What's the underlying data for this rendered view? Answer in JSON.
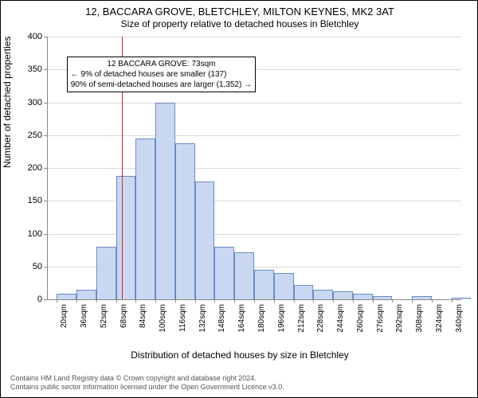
{
  "title_line1": "12, BACCARA GROVE, BLETCHLEY, MILTON KEYNES, MK2 3AT",
  "title_line2": "Size of property relative to detached houses in Bletchley",
  "y_axis_title": "Number of detached properties",
  "x_axis_title": "Distribution of detached houses by size in Bletchley",
  "chart": {
    "type": "histogram",
    "x_min": 12,
    "x_max": 348,
    "y_min": 0,
    "y_max": 400,
    "y_ticks": [
      0,
      50,
      100,
      150,
      200,
      250,
      300,
      350,
      400
    ],
    "x_tick_start": 20,
    "x_tick_step": 16,
    "x_tick_count": 21,
    "x_tick_suffix": "sqm",
    "bin_width": 16,
    "bins": [
      {
        "start": 20,
        "count": 8
      },
      {
        "start": 36,
        "count": 15
      },
      {
        "start": 52,
        "count": 80
      },
      {
        "start": 68,
        "count": 188
      },
      {
        "start": 84,
        "count": 245
      },
      {
        "start": 100,
        "count": 300
      },
      {
        "start": 116,
        "count": 238
      },
      {
        "start": 132,
        "count": 180
      },
      {
        "start": 148,
        "count": 80
      },
      {
        "start": 164,
        "count": 72
      },
      {
        "start": 180,
        "count": 45
      },
      {
        "start": 196,
        "count": 40
      },
      {
        "start": 212,
        "count": 22
      },
      {
        "start": 228,
        "count": 15
      },
      {
        "start": 244,
        "count": 12
      },
      {
        "start": 260,
        "count": 8
      },
      {
        "start": 276,
        "count": 5
      },
      {
        "start": 292,
        "count": 0
      },
      {
        "start": 308,
        "count": 5
      },
      {
        "start": 324,
        "count": 0
      },
      {
        "start": 340,
        "count": 3
      }
    ],
    "bar_fill": "#c9d8f0",
    "bar_stroke": "#6b8bc4",
    "grid_color": "#d9d9d9",
    "axis_color": "#888888",
    "background": "#ffffff",
    "marker": {
      "value": 73,
      "color": "#d62728"
    },
    "annotation": {
      "line1": "12 BACCARA GROVE: 73sqm",
      "line2": "← 9% of detached houses are smaller (137)",
      "line3": "90% of semi-detached houses are larger (1,352) →",
      "top_y_value": 370,
      "left_x_value": 28
    }
  },
  "footer_line1": "Contains HM Land Registry data © Crown copyright and database right 2024.",
  "footer_line2": "Contains public sector information licensed under the Open Government Licence v3.0."
}
